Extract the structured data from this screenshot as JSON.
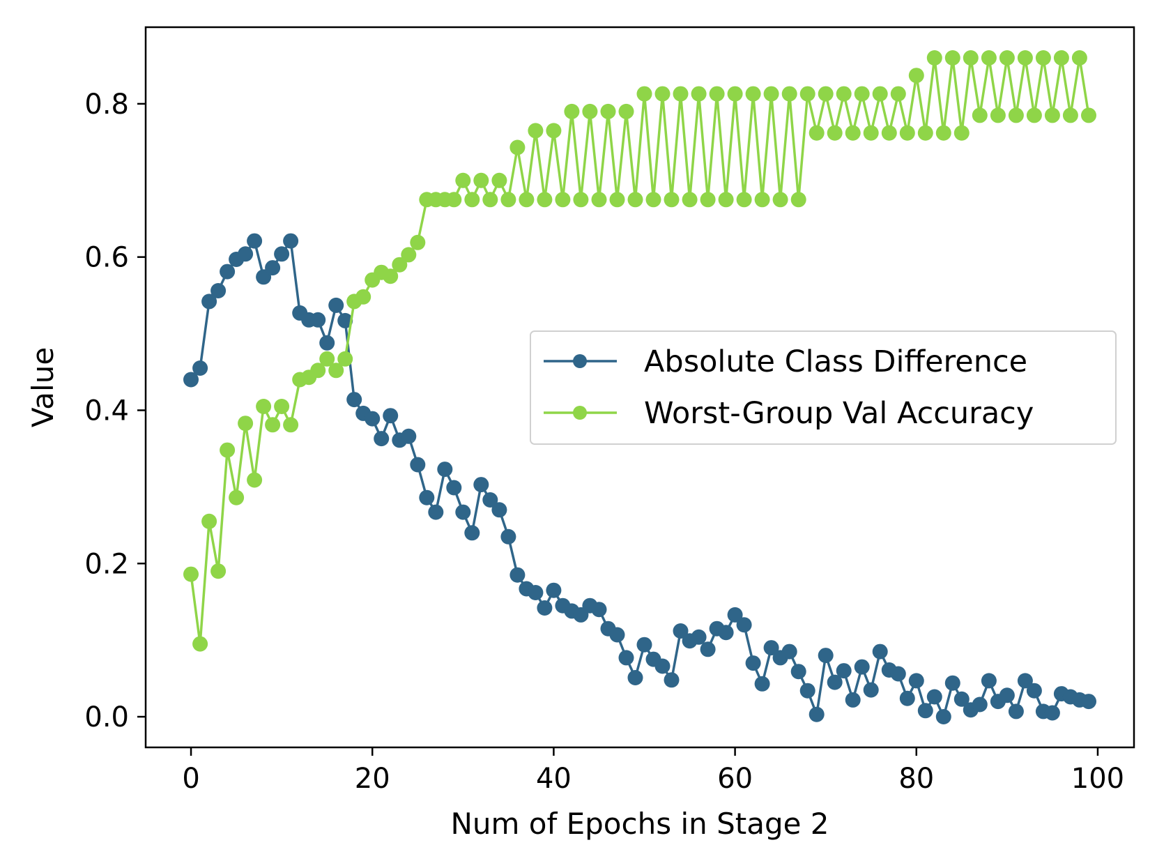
{
  "chart_data": {
    "type": "line",
    "title": "",
    "xlabel": "Num of Epochs in Stage 2",
    "ylabel": "Value",
    "xlim": [
      -5,
      104
    ],
    "ylim": [
      -0.04,
      0.9
    ],
    "xticks": [
      0,
      20,
      40,
      60,
      80,
      100
    ],
    "yticks": [
      0.0,
      0.2,
      0.4,
      0.6,
      0.8
    ],
    "xtick_labels": [
      "0",
      "20",
      "40",
      "60",
      "80",
      "100"
    ],
    "ytick_labels": [
      "0.0",
      "0.2",
      "0.4",
      "0.6",
      "0.8"
    ],
    "legend_position": "center-right",
    "grid": false,
    "series": [
      {
        "name": "Absolute Class Difference",
        "color": "#2f6589",
        "marker": "circle",
        "x": [
          0,
          1,
          2,
          3,
          4,
          5,
          6,
          7,
          8,
          9,
          10,
          11,
          12,
          13,
          14,
          15,
          16,
          17,
          18,
          19,
          20,
          21,
          22,
          23,
          24,
          25,
          26,
          27,
          28,
          29,
          30,
          31,
          32,
          33,
          34,
          35,
          36,
          37,
          38,
          39,
          40,
          41,
          42,
          43,
          44,
          45,
          46,
          47,
          48,
          49,
          50,
          51,
          52,
          53,
          54,
          55,
          56,
          57,
          58,
          59,
          60,
          61,
          62,
          63,
          64,
          65,
          66,
          67,
          68,
          69,
          70,
          71,
          72,
          73,
          74,
          75,
          76,
          77,
          78,
          79,
          80,
          81,
          82,
          83,
          84,
          85,
          86,
          87,
          88,
          89,
          90,
          91,
          92,
          93,
          94,
          95,
          96,
          97,
          98,
          99
        ],
        "values": [
          0.44,
          0.455,
          0.542,
          0.556,
          0.581,
          0.597,
          0.604,
          0.621,
          0.574,
          0.586,
          0.604,
          0.621,
          0.527,
          0.518,
          0.518,
          0.488,
          0.537,
          0.517,
          0.414,
          0.396,
          0.389,
          0.363,
          0.393,
          0.361,
          0.366,
          0.329,
          0.286,
          0.267,
          0.323,
          0.299,
          0.267,
          0.24,
          0.303,
          0.283,
          0.27,
          0.235,
          0.185,
          0.167,
          0.162,
          0.142,
          0.165,
          0.145,
          0.138,
          0.133,
          0.145,
          0.14,
          0.115,
          0.107,
          0.077,
          0.051,
          0.094,
          0.075,
          0.066,
          0.048,
          0.112,
          0.099,
          0.104,
          0.088,
          0.115,
          0.11,
          0.133,
          0.12,
          0.07,
          0.043,
          0.09,
          0.077,
          0.085,
          0.059,
          0.034,
          0.003,
          0.08,
          0.045,
          0.06,
          0.022,
          0.065,
          0.035,
          0.085,
          0.061,
          0.056,
          0.024,
          0.047,
          0.008,
          0.026,
          0.0,
          0.044,
          0.023,
          0.009,
          0.016,
          0.047,
          0.02,
          0.028,
          0.007,
          0.047,
          0.034,
          0.007,
          0.005,
          0.03,
          0.026,
          0.022,
          0.02
        ]
      },
      {
        "name": "Worst-Group Val Accuracy",
        "color": "#8fd548",
        "marker": "circle",
        "x": [
          0,
          1,
          2,
          3,
          4,
          5,
          6,
          7,
          8,
          9,
          10,
          11,
          12,
          13,
          14,
          15,
          16,
          17,
          18,
          19,
          20,
          21,
          22,
          23,
          24,
          25,
          26,
          27,
          28,
          29,
          30,
          31,
          32,
          33,
          34,
          35,
          36,
          37,
          38,
          39,
          40,
          41,
          42,
          43,
          44,
          45,
          46,
          47,
          48,
          49,
          50,
          51,
          52,
          53,
          54,
          55,
          56,
          57,
          58,
          59,
          60,
          61,
          62,
          63,
          64,
          65,
          66,
          67,
          68,
          69,
          70,
          71,
          72,
          73,
          74,
          75,
          76,
          77,
          78,
          79,
          80,
          81,
          82,
          83,
          84,
          85,
          86,
          87,
          88,
          89,
          90,
          91,
          92,
          93,
          94,
          95,
          96,
          97,
          98,
          99
        ],
        "values": [
          0.186,
          0.095,
          0.255,
          0.19,
          0.348,
          0.286,
          0.383,
          0.309,
          0.405,
          0.381,
          0.405,
          0.381,
          0.44,
          0.443,
          0.452,
          0.467,
          0.452,
          0.467,
          0.542,
          0.548,
          0.57,
          0.58,
          0.575,
          0.59,
          0.603,
          0.619,
          0.675,
          0.675,
          0.675,
          0.675,
          0.7,
          0.675,
          0.7,
          0.675,
          0.7,
          0.675,
          0.743,
          0.675,
          0.765,
          0.675,
          0.765,
          0.675,
          0.79,
          0.675,
          0.79,
          0.675,
          0.79,
          0.675,
          0.79,
          0.675,
          0.813,
          0.675,
          0.813,
          0.675,
          0.813,
          0.675,
          0.813,
          0.675,
          0.813,
          0.675,
          0.813,
          0.675,
          0.813,
          0.675,
          0.813,
          0.675,
          0.813,
          0.675,
          0.813,
          0.762,
          0.813,
          0.762,
          0.813,
          0.762,
          0.813,
          0.762,
          0.813,
          0.762,
          0.813,
          0.762,
          0.837,
          0.762,
          0.86,
          0.762,
          0.86,
          0.762,
          0.86,
          0.785,
          0.86,
          0.785,
          0.86,
          0.785,
          0.86,
          0.785,
          0.86,
          0.785,
          0.86,
          0.785,
          0.86,
          0.785
        ]
      }
    ]
  }
}
